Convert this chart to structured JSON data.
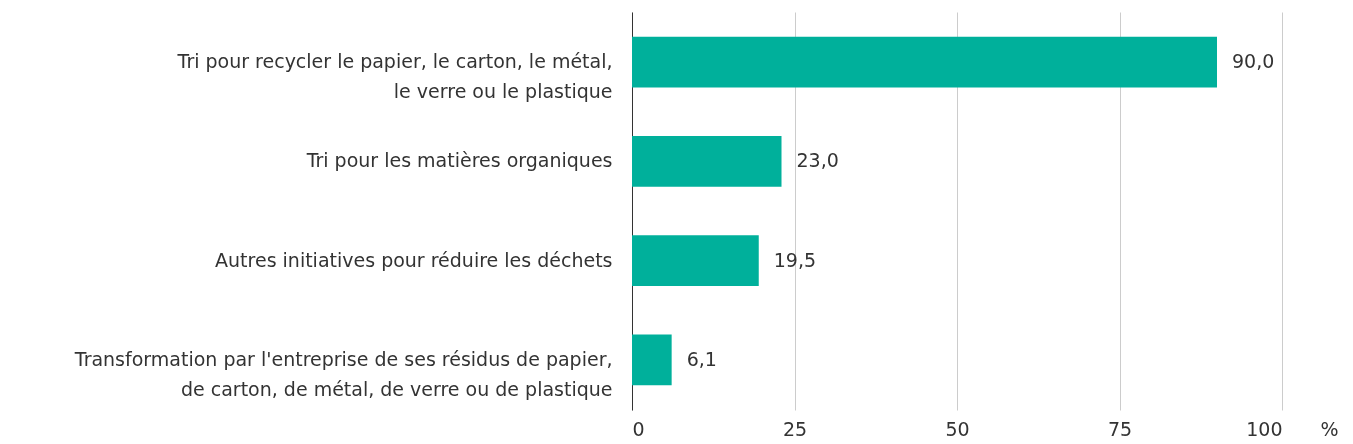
{
  "chart_data": {
    "type": "bar",
    "orientation": "horizontal",
    "categories": [
      "Tri pour recycler le papier, le carton, le métal,\nle verre ou le plastique",
      "Tri pour les matières organiques",
      "Autres initiatives pour réduire les déchets",
      "Transformation par l'entreprise de ses résidus de papier,\nde carton, de métal, de verre ou de plastique"
    ],
    "values": [
      90.0,
      23.0,
      19.5,
      6.1
    ],
    "value_labels": [
      "90,0",
      "23,0",
      "19,5",
      "6,1"
    ],
    "color": "#00b09b",
    "xlabel": "%",
    "xlim": [
      0,
      100
    ],
    "xticks": [
      0,
      25,
      50,
      75,
      100
    ],
    "grid": "x"
  }
}
